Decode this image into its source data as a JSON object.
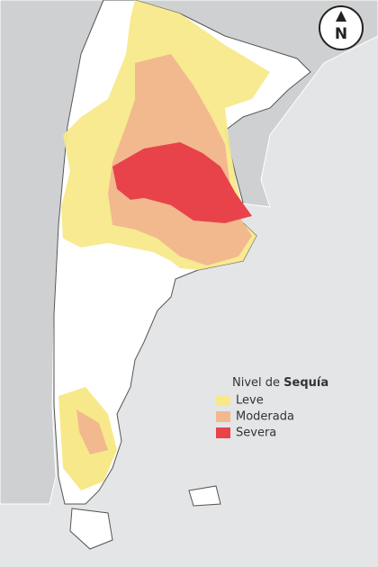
{
  "legend": {
    "title": "Nivel de",
    "title_bold": "Sequía",
    "items": [
      {
        "label": "Leve",
        "color": "#f7e98a"
      },
      {
        "label": "Moderada",
        "color": "#f3b98e"
      },
      {
        "label": "Severa",
        "color": "#e8434a"
      }
    ]
  },
  "compass": "N"
}
